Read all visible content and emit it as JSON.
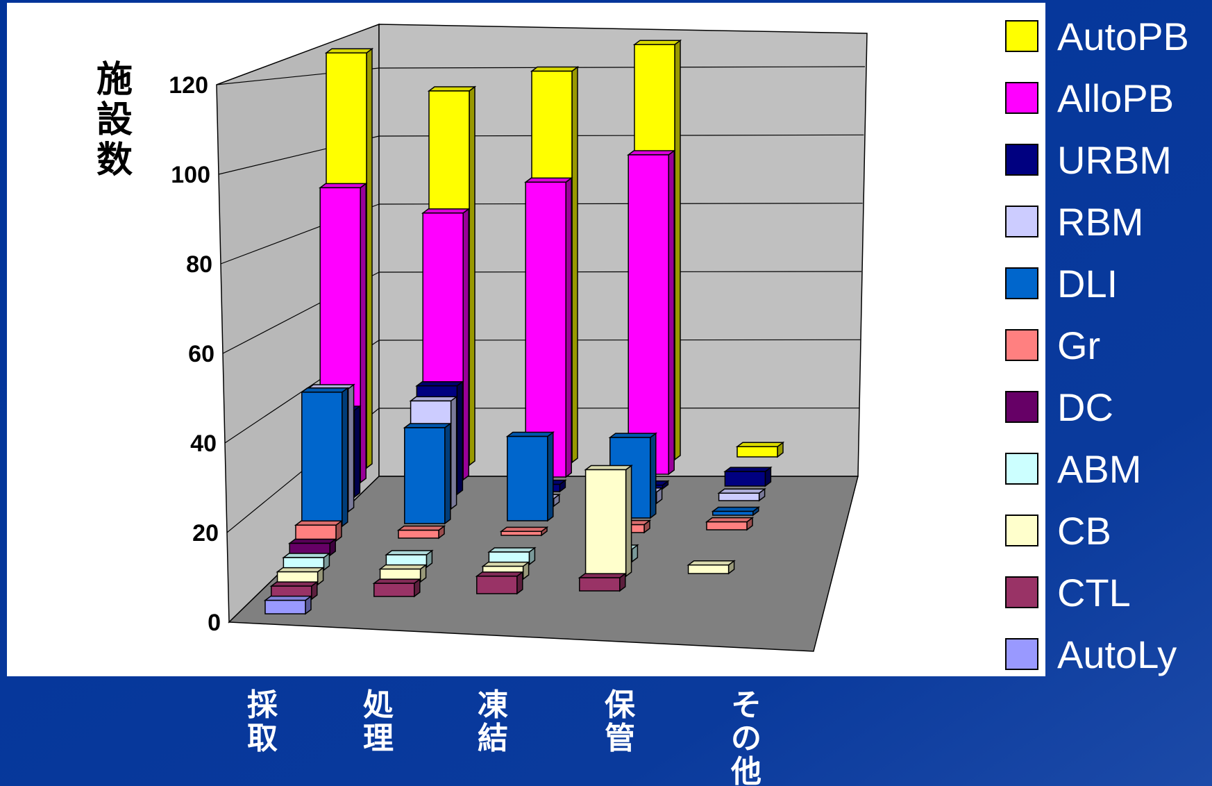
{
  "chart_data": {
    "type": "bar",
    "style": "3d-clustered-depth",
    "ylabel": "施設数",
    "xlabel": "",
    "ylim": [
      0,
      120
    ],
    "yticks": [
      0,
      20,
      40,
      60,
      80,
      100,
      120
    ],
    "categories": [
      "採取",
      "処理",
      "凍結",
      "保管",
      "その他"
    ],
    "grid": true,
    "legend_position": "right",
    "series": [
      {
        "name": "AutoPB",
        "color": "#FFFF00",
        "values": [
          122,
          110,
          115,
          122,
          3
        ]
      },
      {
        "name": "AlloPB",
        "color": "#FF00FF",
        "values": [
          84,
          76,
          84,
          91,
          0
        ]
      },
      {
        "name": "URBM",
        "color": "#000080",
        "values": [
          24,
          30,
          2,
          1,
          4
        ]
      },
      {
        "name": "RBM",
        "color": "#CCCCFF",
        "values": [
          33,
          29,
          2,
          3,
          2
        ]
      },
      {
        "name": "DLI",
        "color": "#0066CC",
        "values": [
          35,
          25,
          22,
          21,
          1
        ]
      },
      {
        "name": "Gr",
        "color": "#FF8080",
        "values": [
          4,
          2,
          1,
          2,
          2
        ]
      },
      {
        "name": "DC",
        "color": "#660066",
        "values": [
          3,
          0,
          0,
          0,
          0
        ]
      },
      {
        "name": "ABM",
        "color": "#CCFFFF",
        "values": [
          3,
          3,
          3,
          3,
          0
        ]
      },
      {
        "name": "CB",
        "color": "#FFFFCC",
        "values": [
          3,
          3,
          3,
          25,
          2
        ]
      },
      {
        "name": "CTL",
        "color": "#993366",
        "values": [
          3,
          3,
          4,
          3,
          0
        ]
      },
      {
        "name": "AutoLy",
        "color": "#9999FF",
        "values": [
          3,
          0,
          0,
          0,
          0
        ]
      }
    ]
  }
}
